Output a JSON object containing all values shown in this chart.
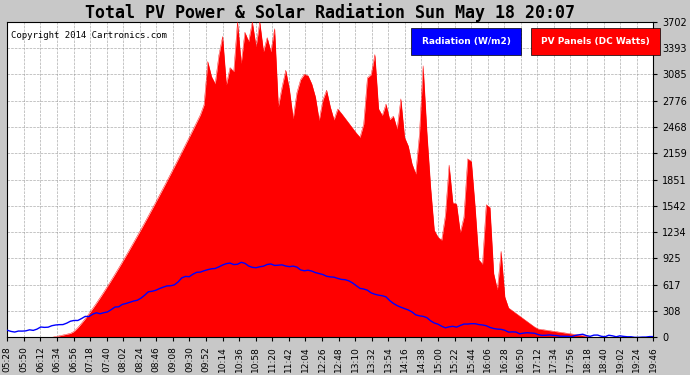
{
  "title": "Total PV Power & Solar Radiation Sun May 18 20:07",
  "copyright": "Copyright 2014 Cartronics.com",
  "legend_radiation": "Radiation (W/m2)",
  "legend_pv": "PV Panels (DC Watts)",
  "yticks": [
    0.0,
    308.5,
    616.9,
    925.4,
    1233.8,
    1542.3,
    1850.8,
    2159.2,
    2467.7,
    2776.1,
    3084.6,
    3393.0,
    3701.5
  ],
  "ymax": 3701.5,
  "ymin": 0.0,
  "fig_bg_color": "#c8c8c8",
  "plot_bg_color": "#ffffff",
  "pv_color": "#ff0000",
  "radiation_color": "#0000ff",
  "grid_color": "#999999",
  "title_fontsize": 12,
  "tick_fontsize": 7,
  "n_points": 175,
  "x_labels": [
    "05:28",
    "05:50",
    "06:12",
    "06:34",
    "06:56",
    "07:18",
    "07:40",
    "08:02",
    "08:24",
    "08:46",
    "09:08",
    "09:30",
    "09:52",
    "10:14",
    "10:36",
    "10:58",
    "11:20",
    "11:42",
    "12:04",
    "12:26",
    "12:48",
    "13:10",
    "13:32",
    "13:54",
    "14:16",
    "14:38",
    "15:00",
    "15:22",
    "15:44",
    "16:06",
    "16:28",
    "16:50",
    "17:12",
    "17:34",
    "17:56",
    "18:18",
    "18:40",
    "19:02",
    "19:24",
    "19:46"
  ]
}
